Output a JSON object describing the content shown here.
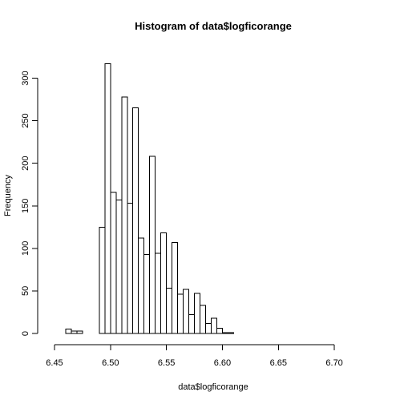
{
  "chart_data": {
    "type": "bar",
    "title": "Histogram of data$logficorange",
    "xlabel": "data$logficorange",
    "ylabel": "Frequency",
    "bin_width": 0.005,
    "bins": [
      {
        "x0": 6.46,
        "x1": 6.465,
        "count": 5
      },
      {
        "x0": 6.465,
        "x1": 6.47,
        "count": 3
      },
      {
        "x0": 6.47,
        "x1": 6.475,
        "count": 3
      },
      {
        "x0": 6.475,
        "x1": 6.48,
        "count": 0
      },
      {
        "x0": 6.48,
        "x1": 6.485,
        "count": 0
      },
      {
        "x0": 6.485,
        "x1": 6.49,
        "count": 0
      },
      {
        "x0": 6.49,
        "x1": 6.495,
        "count": 125
      },
      {
        "x0": 6.495,
        "x1": 6.5,
        "count": 317
      },
      {
        "x0": 6.5,
        "x1": 6.505,
        "count": 166
      },
      {
        "x0": 6.505,
        "x1": 6.51,
        "count": 157
      },
      {
        "x0": 6.51,
        "x1": 6.515,
        "count": 278
      },
      {
        "x0": 6.515,
        "x1": 6.52,
        "count": 153
      },
      {
        "x0": 6.52,
        "x1": 6.525,
        "count": 265
      },
      {
        "x0": 6.525,
        "x1": 6.53,
        "count": 112
      },
      {
        "x0": 6.53,
        "x1": 6.535,
        "count": 93
      },
      {
        "x0": 6.535,
        "x1": 6.54,
        "count": 208
      },
      {
        "x0": 6.54,
        "x1": 6.545,
        "count": 94
      },
      {
        "x0": 6.545,
        "x1": 6.55,
        "count": 118
      },
      {
        "x0": 6.55,
        "x1": 6.555,
        "count": 53
      },
      {
        "x0": 6.555,
        "x1": 6.56,
        "count": 107
      },
      {
        "x0": 6.56,
        "x1": 6.565,
        "count": 46
      },
      {
        "x0": 6.565,
        "x1": 6.57,
        "count": 52
      },
      {
        "x0": 6.57,
        "x1": 6.575,
        "count": 22
      },
      {
        "x0": 6.575,
        "x1": 6.58,
        "count": 47
      },
      {
        "x0": 6.58,
        "x1": 6.585,
        "count": 33
      },
      {
        "x0": 6.585,
        "x1": 6.59,
        "count": 12
      },
      {
        "x0": 6.59,
        "x1": 6.595,
        "count": 18
      },
      {
        "x0": 6.595,
        "x1": 6.6,
        "count": 6
      },
      {
        "x0": 6.6,
        "x1": 6.605,
        "count": 1
      },
      {
        "x0": 6.605,
        "x1": 6.61,
        "count": 1
      }
    ],
    "xlim": [
      6.445,
      6.73
    ],
    "ylim": [
      0,
      325
    ],
    "x_ticks": [
      6.45,
      6.5,
      6.55,
      6.6,
      6.65,
      6.7
    ],
    "x_tick_labels": [
      "6.45",
      "6.50",
      "6.55",
      "6.60",
      "6.65",
      "6.70"
    ],
    "y_ticks": [
      0,
      50,
      100,
      150,
      200,
      250,
      300
    ],
    "y_tick_labels": [
      "0",
      "50",
      "100",
      "150",
      "200",
      "250",
      "300"
    ],
    "grid": false,
    "bar_fill": "#ffffff",
    "bar_stroke": "#000000"
  }
}
